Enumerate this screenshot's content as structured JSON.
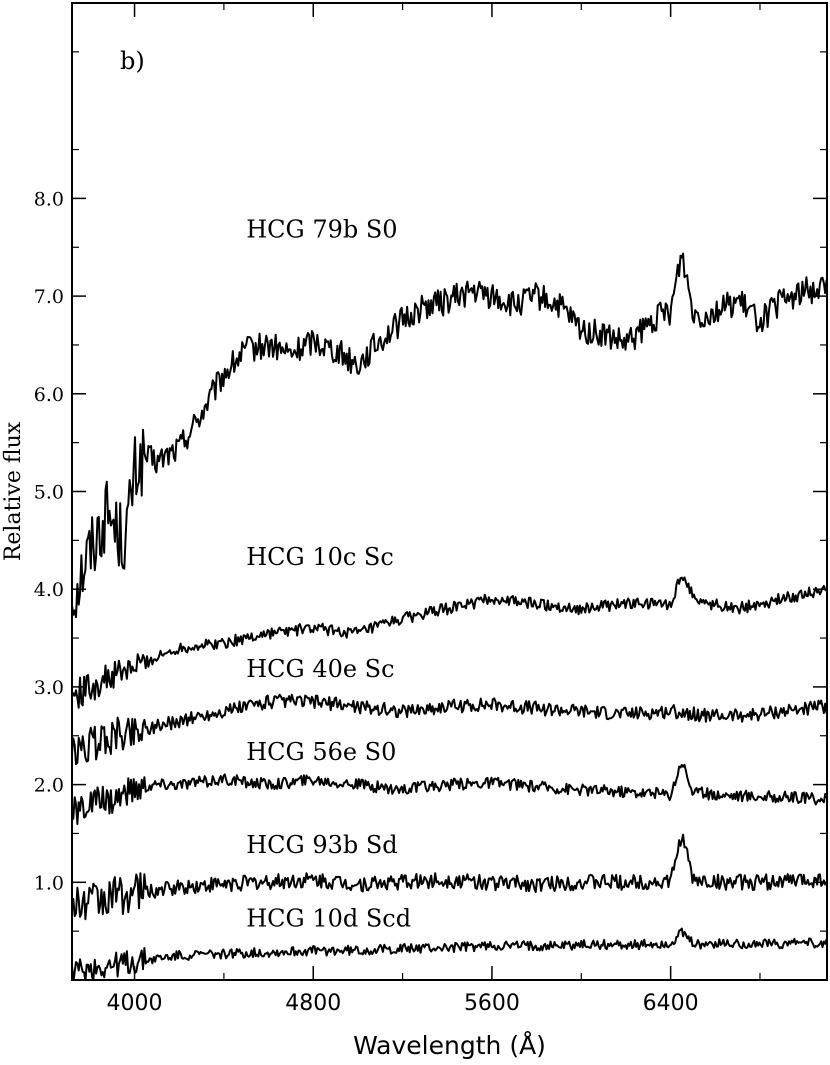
{
  "chart_data": {
    "type": "line",
    "panel_label": "b)",
    "xlabel": "Wavelength (Å)",
    "ylabel": "Relative flux",
    "xlim": [
      3720,
      7100
    ],
    "ylim": [
      0,
      10
    ],
    "x_ticks": [
      4000,
      4800,
      5600,
      6400
    ],
    "x_tick_labels": [
      "4000",
      "4800",
      "5600",
      "6400"
    ],
    "y_ticks": [
      1.0,
      2.0,
      3.0,
      4.0,
      5.0,
      6.0,
      7.0,
      8.0
    ],
    "y_tick_labels": [
      "1.0",
      "2.0",
      "3.0",
      "4.0",
      "5.0",
      "6.0",
      "7.0",
      "8.0"
    ],
    "line_color": "#000000",
    "series": [
      {
        "name": "HCG 79b S0",
        "label_x": 4500,
        "label_y": 7.6,
        "noise": 0.14,
        "x": [
          3720,
          3780,
          3840,
          3880,
          3920,
          3960,
          4000,
          4050,
          4100,
          4200,
          4300,
          4400,
          4500,
          4600,
          4700,
          4800,
          4900,
          5000,
          5100,
          5200,
          5300,
          5400,
          5500,
          5600,
          5700,
          5800,
          5900,
          6000,
          6100,
          6200,
          6300,
          6350,
          6400,
          6450,
          6500,
          6550,
          6600,
          6650,
          6700,
          6750,
          6800,
          6900,
          7000,
          7100
        ],
        "y": [
          3.9,
          4.3,
          4.6,
          4.8,
          4.6,
          4.5,
          5.2,
          5.35,
          5.3,
          5.45,
          5.8,
          6.2,
          6.45,
          6.5,
          6.4,
          6.55,
          6.45,
          6.3,
          6.55,
          6.75,
          6.9,
          6.95,
          7.05,
          7.0,
          6.9,
          7.0,
          6.9,
          6.65,
          6.6,
          6.5,
          6.7,
          6.8,
          6.85,
          7.45,
          6.85,
          6.8,
          6.85,
          6.9,
          6.95,
          6.85,
          6.75,
          6.95,
          7.05,
          7.1
        ]
      },
      {
        "name": "HCG 10c Sc",
        "label_x": 4500,
        "label_y": 4.25,
        "noise": 0.06,
        "x": [
          3720,
          3800,
          3900,
          4000,
          4100,
          4200,
          4400,
          4600,
          4800,
          5000,
          5200,
          5400,
          5600,
          5800,
          6000,
          6200,
          6400,
          6450,
          6500,
          6550,
          6600,
          6700,
          6800,
          6900,
          7000,
          7100
        ],
        "y": [
          2.9,
          3.0,
          3.1,
          3.2,
          3.3,
          3.4,
          3.45,
          3.55,
          3.6,
          3.55,
          3.7,
          3.8,
          3.9,
          3.85,
          3.8,
          3.85,
          3.85,
          4.15,
          3.95,
          3.85,
          3.85,
          3.8,
          3.85,
          3.9,
          3.95,
          4.0
        ]
      },
      {
        "name": "HCG 40e Sc",
        "label_x": 4500,
        "label_y": 3.1,
        "noise": 0.07,
        "x": [
          3720,
          3800,
          3900,
          4000,
          4100,
          4200,
          4400,
          4600,
          4800,
          5000,
          5200,
          5400,
          5600,
          5800,
          6000,
          6200,
          6400,
          6600,
          6800,
          7000,
          7100
        ],
        "y": [
          2.3,
          2.4,
          2.5,
          2.55,
          2.6,
          2.65,
          2.75,
          2.85,
          2.85,
          2.8,
          2.75,
          2.8,
          2.82,
          2.78,
          2.75,
          2.72,
          2.75,
          2.7,
          2.72,
          2.78,
          2.8
        ]
      },
      {
        "name": "HCG 56e S0",
        "label_x": 4500,
        "label_y": 2.25,
        "noise": 0.06,
        "x": [
          3720,
          3800,
          3900,
          4000,
          4100,
          4200,
          4400,
          4600,
          4800,
          5000,
          5200,
          5400,
          5600,
          5800,
          6000,
          6200,
          6400,
          6450,
          6500,
          6600,
          6800,
          7000,
          7100
        ],
        "y": [
          1.7,
          1.8,
          1.85,
          1.95,
          2.0,
          2.0,
          2.05,
          2.0,
          2.05,
          2.0,
          1.95,
          2.0,
          2.02,
          1.98,
          1.95,
          1.93,
          1.9,
          2.25,
          1.92,
          1.9,
          1.88,
          1.86,
          1.85
        ]
      },
      {
        "name": "HCG 93b Sd",
        "label_x": 4500,
        "label_y": 1.3,
        "noise": 0.08,
        "x": [
          3720,
          3800,
          3900,
          4000,
          4100,
          4200,
          4400,
          4600,
          4800,
          5000,
          5200,
          5400,
          5600,
          5800,
          6000,
          6200,
          6400,
          6450,
          6500,
          6600,
          6800,
          7000,
          7100
        ],
        "y": [
          0.75,
          0.8,
          0.85,
          0.9,
          0.92,
          0.95,
          0.98,
          1.0,
          1.02,
          0.98,
          1.0,
          1.02,
          1.0,
          0.98,
          1.0,
          1.0,
          1.0,
          1.5,
          1.02,
          1.0,
          1.0,
          1.02,
          1.03
        ]
      },
      {
        "name": "HCG 10d Scd",
        "label_x": 4500,
        "label_y": 0.55,
        "noise": 0.05,
        "x": [
          3720,
          3800,
          3900,
          4000,
          4100,
          4200,
          4400,
          4600,
          4800,
          5000,
          5200,
          5400,
          5600,
          5800,
          6000,
          6200,
          6400,
          6450,
          6500,
          6600,
          6800,
          7000,
          7100
        ],
        "y": [
          0.08,
          0.12,
          0.15,
          0.18,
          0.22,
          0.25,
          0.27,
          0.28,
          0.3,
          0.3,
          0.32,
          0.33,
          0.35,
          0.35,
          0.36,
          0.36,
          0.37,
          0.48,
          0.37,
          0.37,
          0.37,
          0.38,
          0.38
        ]
      }
    ]
  }
}
